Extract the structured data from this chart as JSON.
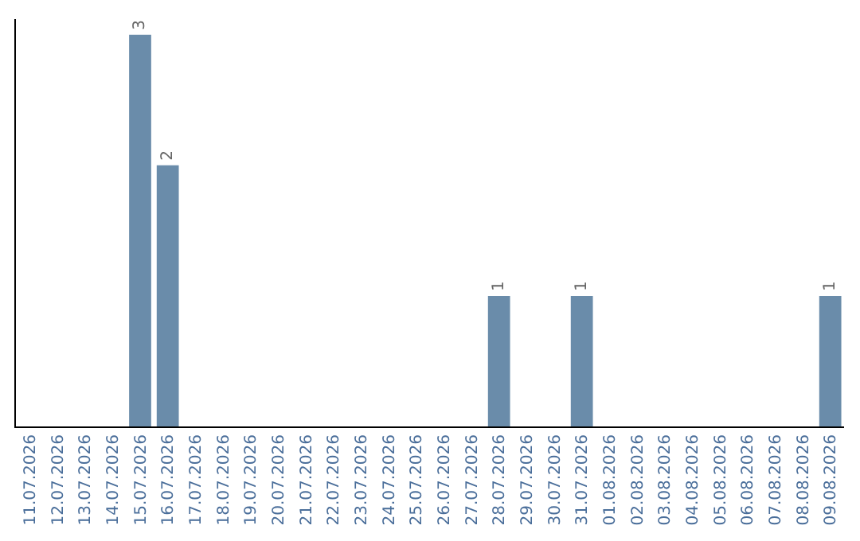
{
  "chart_data": {
    "type": "bar",
    "categories": [
      "11.07.2026",
      "12.07.2026",
      "13.07.2026",
      "14.07.2026",
      "15.07.2026",
      "16.07.2026",
      "17.07.2026",
      "18.07.2026",
      "19.07.2026",
      "20.07.2026",
      "21.07.2026",
      "22.07.2026",
      "23.07.2026",
      "24.07.2026",
      "25.07.2026",
      "26.07.2026",
      "27.07.2026",
      "28.07.2026",
      "29.07.2026",
      "30.07.2026",
      "31.07.2026",
      "01.08.2026",
      "02.08.2026",
      "03.08.2026",
      "04.08.2026",
      "05.08.2026",
      "06.08.2026",
      "07.08.2026",
      "08.08.2026",
      "09.08.2026"
    ],
    "values": [
      0,
      0,
      0,
      0,
      3,
      2,
      0,
      0,
      0,
      0,
      0,
      0,
      0,
      0,
      0,
      0,
      0,
      1,
      0,
      0,
      1,
      0,
      0,
      0,
      0,
      0,
      0,
      0,
      0,
      1
    ],
    "value_labels": [
      null,
      null,
      null,
      null,
      "3",
      "2",
      null,
      null,
      null,
      null,
      null,
      null,
      null,
      null,
      null,
      null,
      null,
      "1",
      null,
      null,
      "1",
      null,
      null,
      null,
      null,
      null,
      null,
      null,
      null,
      "1"
    ],
    "color": "#6a8caa",
    "legend": false,
    "tick_labels": "x"
  }
}
